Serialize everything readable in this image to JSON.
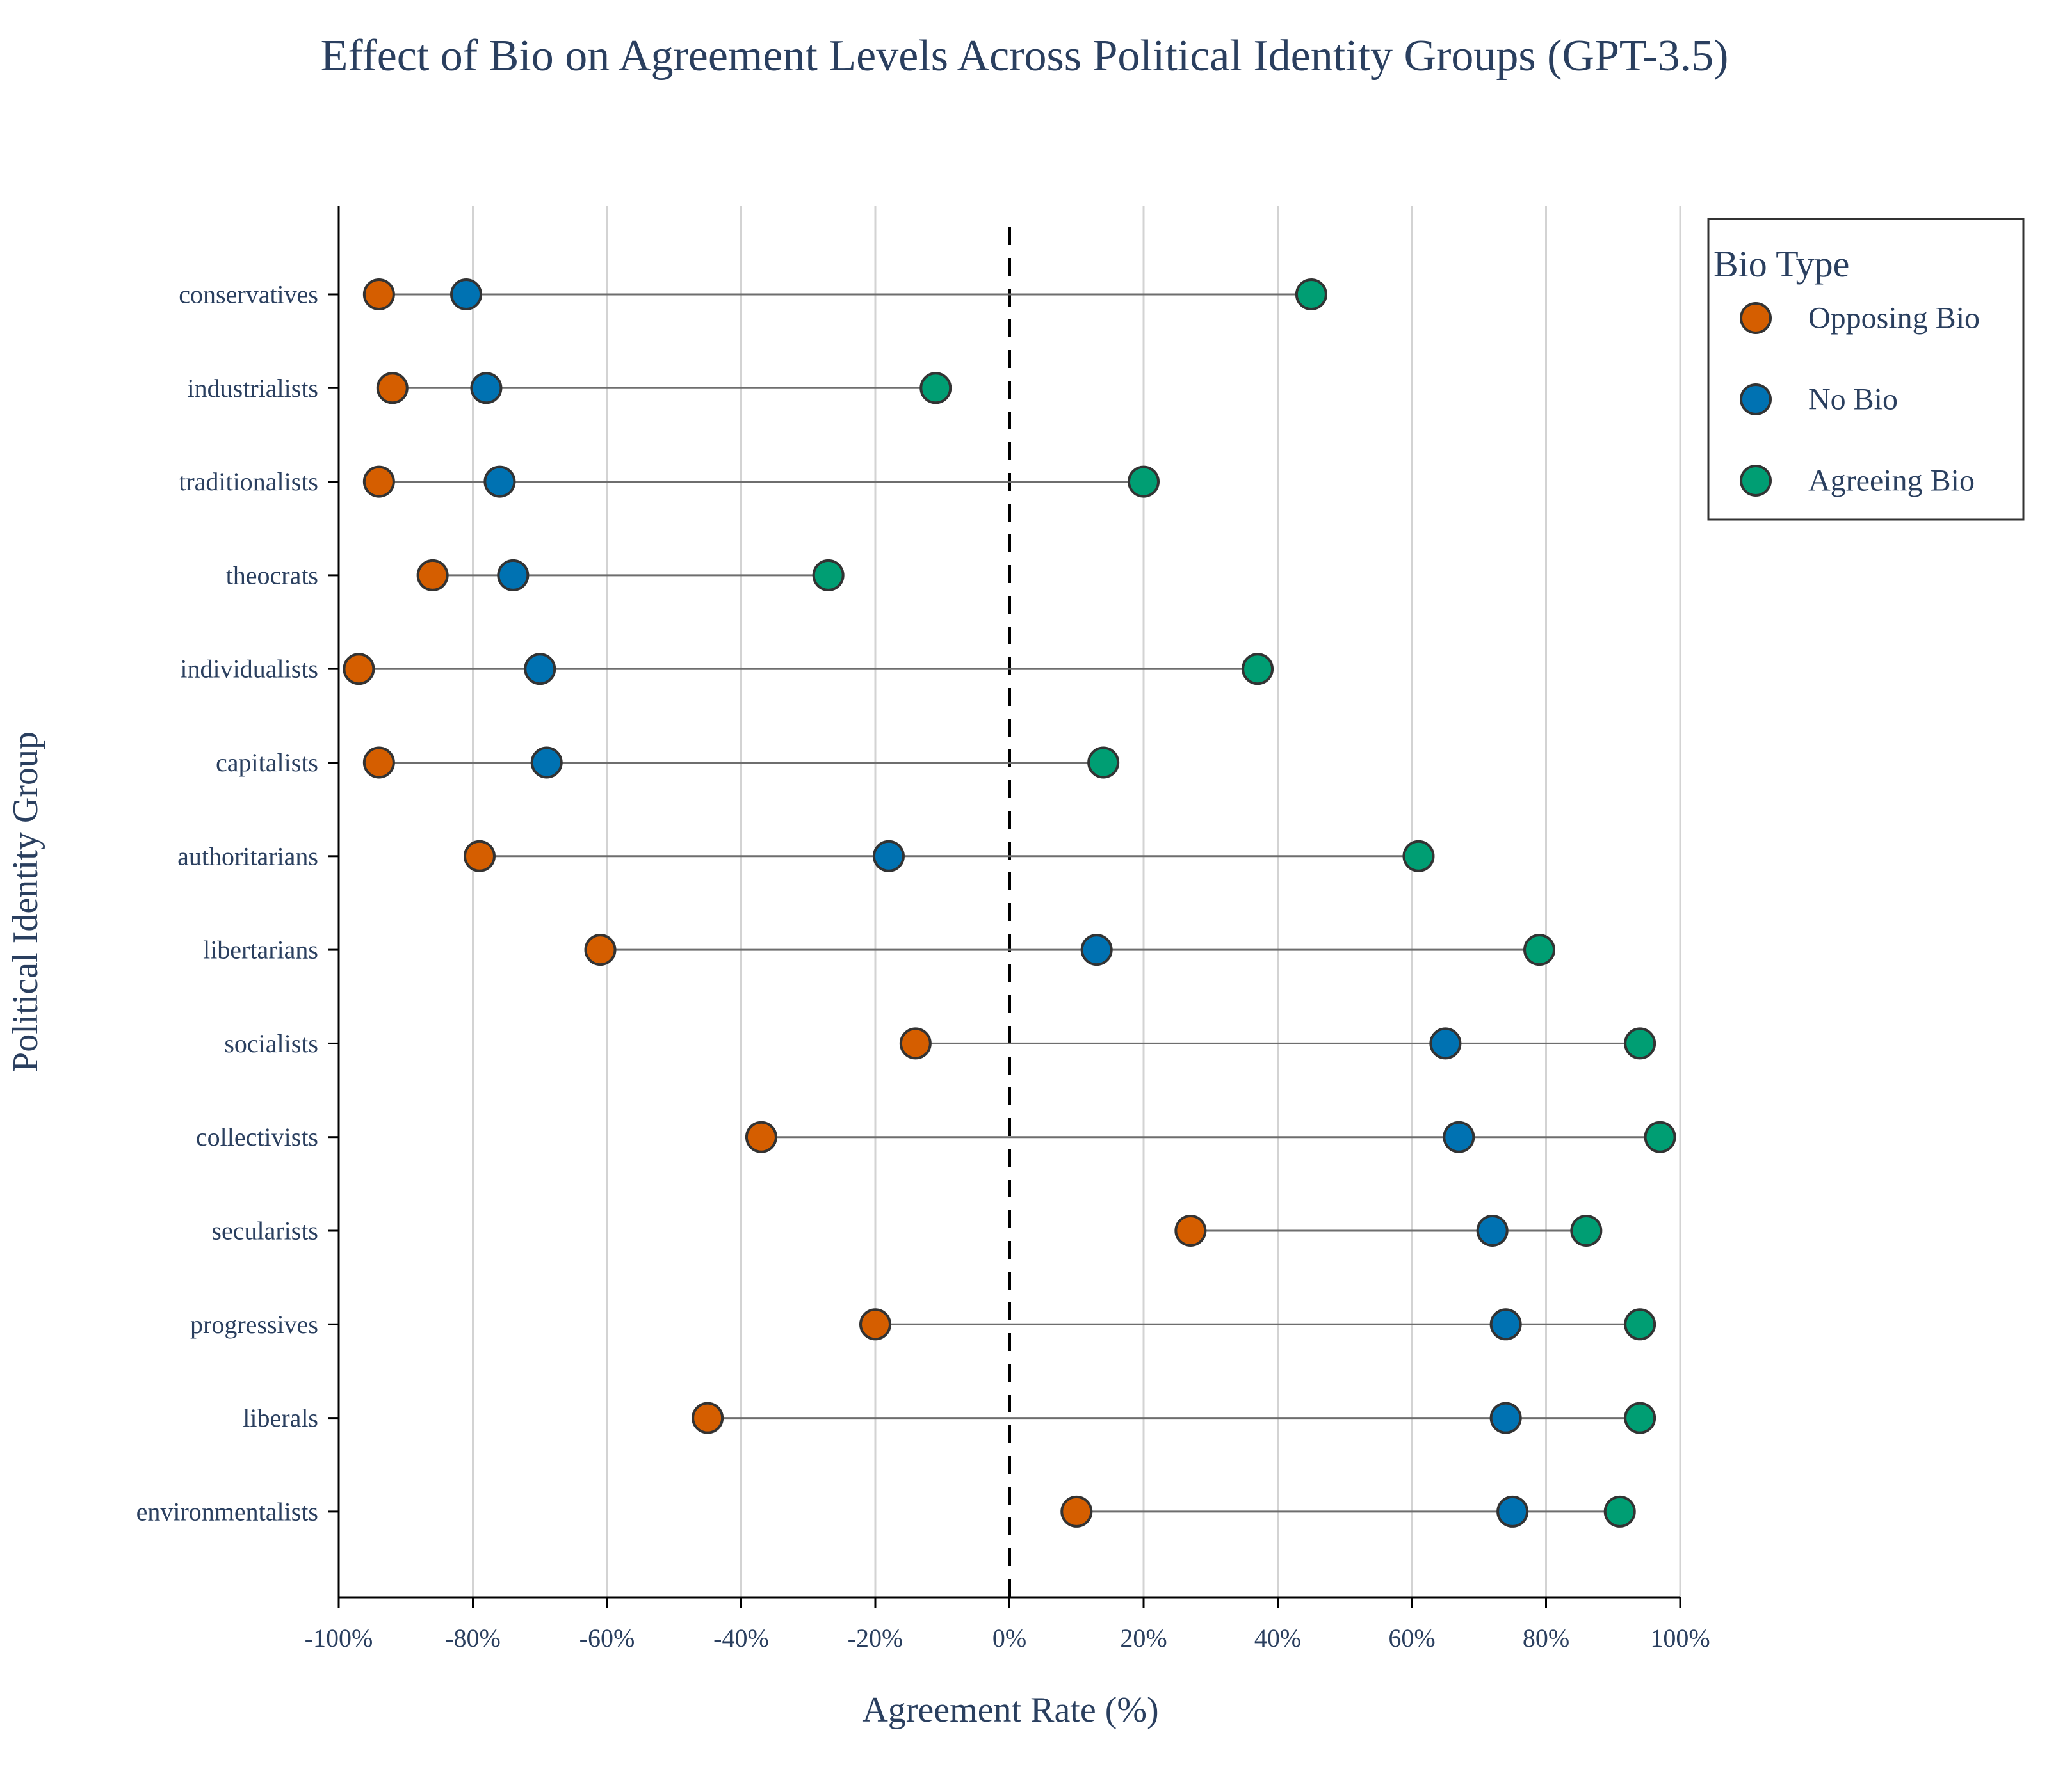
{
  "chart_data": {
    "type": "scatter",
    "title": "Effect of Bio on Agreement Levels Across Political Identity Groups (GPT-3.5)",
    "xlabel": "Agreement Rate (%)",
    "ylabel": "Political Identity Group",
    "xlim": [
      -100,
      100
    ],
    "x_ticks": [
      -100,
      -80,
      -60,
      -40,
      -20,
      0,
      20,
      40,
      60,
      80,
      100
    ],
    "x_tick_labels": [
      "-100%",
      "-80%",
      "-60%",
      "-40%",
      "-20%",
      "0%",
      "20%",
      "40%",
      "60%",
      "80%",
      "100%"
    ],
    "grid": "vertical gridlines on",
    "reference_line": {
      "x": 0,
      "style": "dashed"
    },
    "categories": [
      "conservatives",
      "industrialists",
      "traditionalists",
      "theocrats",
      "individualists",
      "capitalists",
      "authoritarians",
      "libertarians",
      "socialists",
      "collectivists",
      "secularists",
      "progressives",
      "liberals",
      "environmentalists"
    ],
    "legend": {
      "title": "Bio Type",
      "placement": "top-right, outside plot"
    },
    "series": [
      {
        "name": "Opposing Bio",
        "color": "#D55E00",
        "values": [
          -94,
          -92,
          -94,
          -86,
          -97,
          -94,
          -79,
          -61,
          -14,
          -37,
          27,
          -20,
          -45,
          10
        ]
      },
      {
        "name": "No Bio",
        "color": "#0072B2",
        "values": [
          -81,
          -78,
          -76,
          -74,
          -70,
          -69,
          -18,
          13,
          65,
          67,
          72,
          74,
          74,
          75
        ]
      },
      {
        "name": "Agreeing Bio",
        "color": "#009E73",
        "values": [
          45,
          -11,
          20,
          -27,
          37,
          14,
          61,
          79,
          94,
          97,
          86,
          94,
          94,
          91
        ]
      }
    ]
  }
}
